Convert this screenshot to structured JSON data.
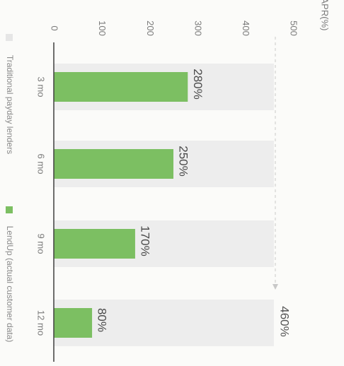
{
  "chart_data": {
    "type": "bar",
    "orientation": "rotated-horizontal",
    "categories": [
      "3 mo",
      "6 mo",
      "9 mo",
      "12 mo"
    ],
    "series": [
      {
        "name": "Traditional payday lenders",
        "values": [
          460,
          460,
          460,
          460
        ],
        "color": "#ededed"
      },
      {
        "name": "LendUp (actual customer data)",
        "values": [
          280,
          250,
          170,
          80
        ],
        "color": "#7cbf62"
      }
    ],
    "value_labels": [
      "280%",
      "250%",
      "170%",
      "80%"
    ],
    "reference_label": "460%",
    "ylabel": "APR(%)",
    "yticks": [
      0,
      100,
      200,
      300,
      400,
      500
    ],
    "ylim": [
      0,
      500
    ],
    "grid": false,
    "legend_position": "bottom"
  }
}
